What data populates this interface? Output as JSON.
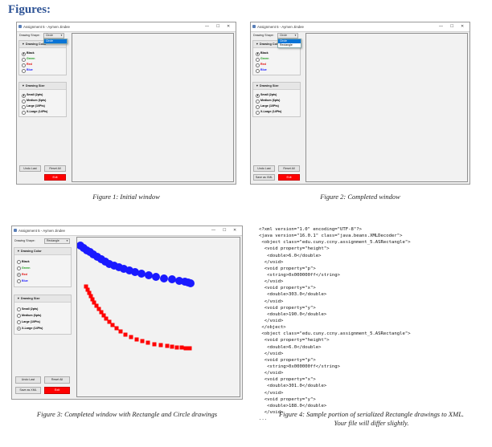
{
  "heading": "Figures:",
  "window_title": "Assignment 5 - Aymen Jindee",
  "window_title_fig3": "Assignment 5 - Aymen Jindee",
  "window_controls": {
    "minimize": "—",
    "maximize": "☐",
    "close": "✕"
  },
  "labels": {
    "drawing_shape": "Drawing Shape:",
    "drawing_color": "Drawing Color",
    "drawing_size": "Drawing Size"
  },
  "colors": [
    {
      "label": "Black",
      "hex": "#000000"
    },
    {
      "label": "Green",
      "hex": "#1a9a1a"
    },
    {
      "label": "Red",
      "hex": "#e00000"
    },
    {
      "label": "Blue",
      "hex": "#1a1aff"
    }
  ],
  "sizes": [
    "Small (2pts)",
    "Medium (6pts)",
    "Large (10Pts)",
    "X-Large (14Pts)"
  ],
  "shape_options": [
    "Circle",
    "Rectangle"
  ],
  "buttons": {
    "undo": "Undo Last",
    "reset": "Reset All",
    "save": "Save as XML",
    "exit": "Exit"
  },
  "fig1": {
    "combo": "Circle",
    "popup": [
      "Circle"
    ],
    "caption": "Figure 1: Initial window"
  },
  "fig2": {
    "combo": "Circle",
    "popup": [
      "Circle",
      "Rectangle"
    ],
    "caption": "Figure 2: Completed window"
  },
  "fig3": {
    "combo": "Rectangle",
    "caption": "Figure 3: Completed window with Rectangle and Circle drawings"
  },
  "fig4": {
    "caption_line1": "Figure 4: Sample portion of serialized Rectangle drawings to XML.",
    "caption_line2": "Your file will differ slightly."
  },
  "xml_lines": [
    "<?xml version=\"1.0\" encoding=\"UTF-8\"?>",
    "<java version=\"16.0.1\" class=\"java.beans.XMLDecoder\">",
    " <object class=\"edu.cuny.ccny.assignment_5.ASRectangle\">",
    "  <void property=\"height\">",
    "   <double>6.0</double>",
    "  </void>",
    "  <void property=\"p\">",
    "   <string>0x000000ff</string>",
    "  </void>",
    "  <void property=\"x\">",
    "   <double>303.0</double>",
    "  </void>",
    "  <void property=\"y\">",
    "   <double>190.0</double>",
    "  </void>",
    " </object>",
    " <object class=\"edu.cuny.ccny.assignment_5.ASRectangle\">",
    "  <void property=\"height\">",
    "   <double>6.0</double>",
    "  </void>",
    "  <void property=\"p\">",
    "   <string>0x000000ff</string>",
    "  </void>",
    "  <void property=\"x\">",
    "   <double>301.0</double>",
    "  </void>",
    "  <void property=\"y\">",
    "   <double>188.0</double>",
    "  </void>",
    "..."
  ]
}
